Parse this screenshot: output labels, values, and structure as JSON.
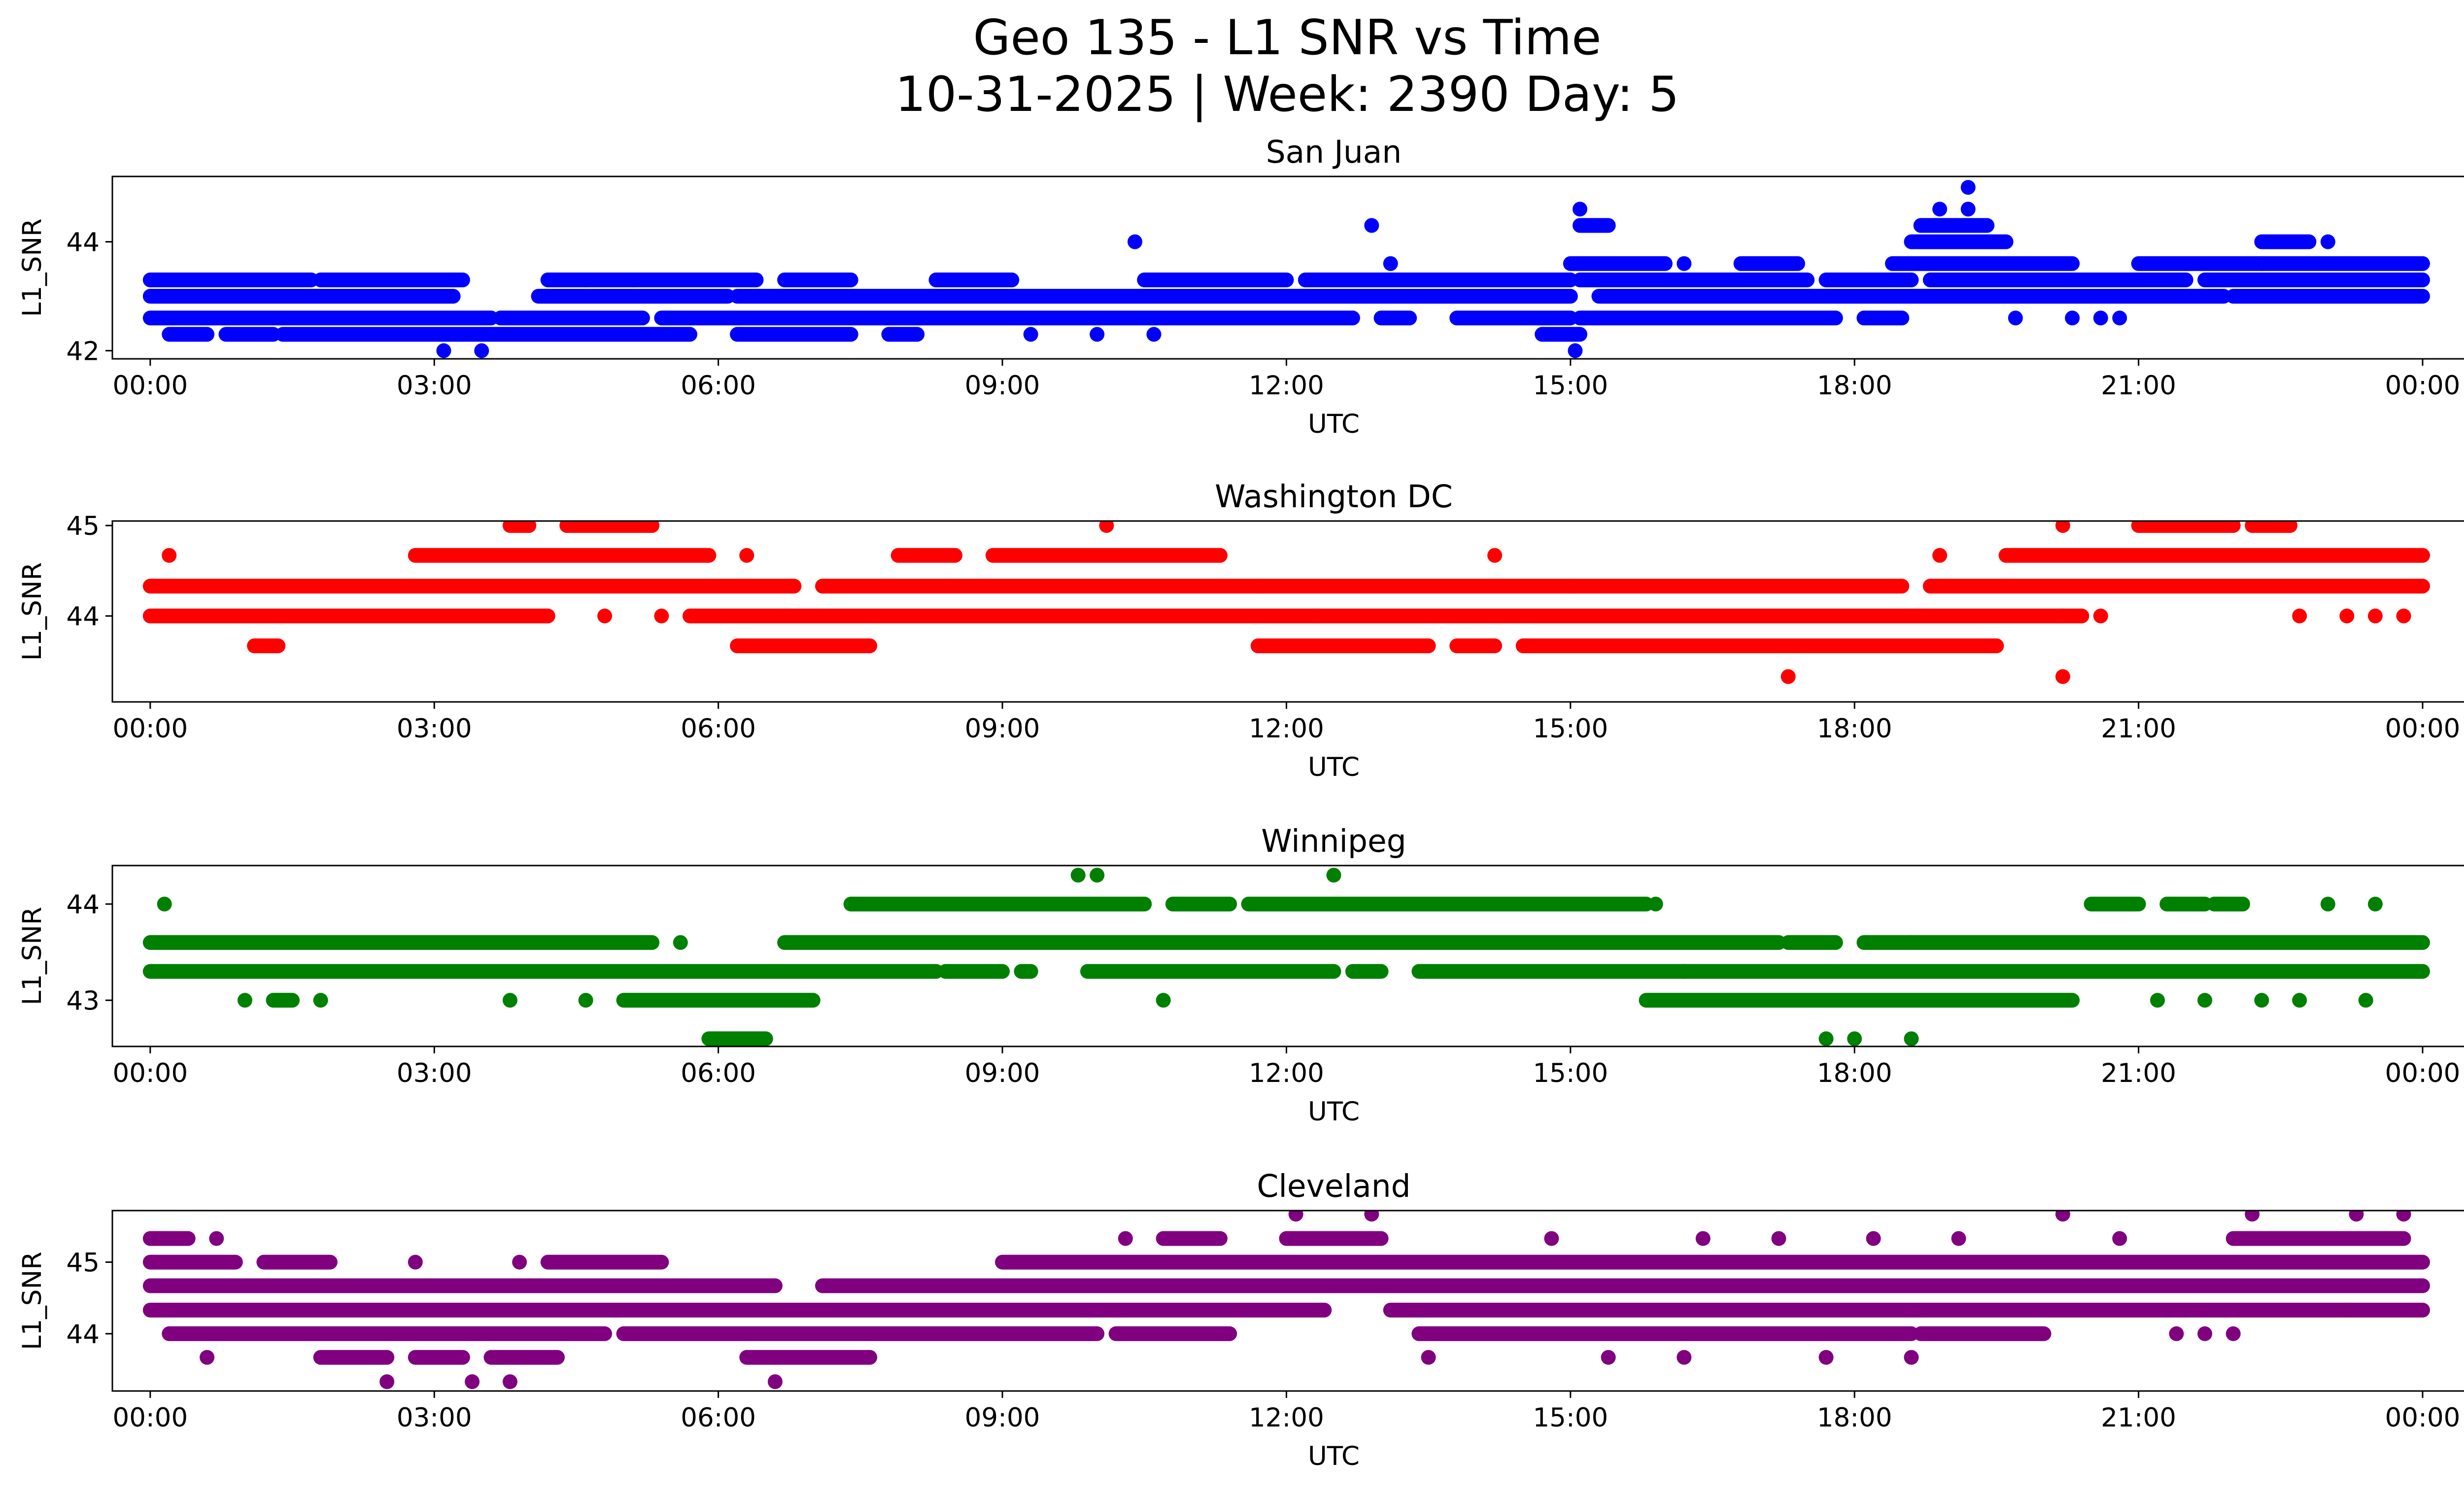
{
  "figure": {
    "title_line1": "Geo 135 - L1 SNR vs Time",
    "title_line2": "10-31-2025 | Week: 2390 Day: 5"
  },
  "chart_data": [
    {
      "type": "scatter",
      "title": "San Juan",
      "xlabel": "UTC",
      "ylabel": "L1_SNR",
      "color": "#0000ff",
      "xlim": [
        -0.4,
        25.4
      ],
      "ylim": [
        41.85,
        45.2
      ],
      "xticks": [
        0,
        3,
        6,
        9,
        12,
        15,
        18,
        21,
        24
      ],
      "xticklabels": [
        "00:00",
        "03:00",
        "06:00",
        "09:00",
        "12:00",
        "15:00",
        "18:00",
        "21:00",
        "00:00"
      ],
      "yticks": [
        42,
        44
      ],
      "yticklabels": [
        "42",
        "44"
      ],
      "bands": [
        {
          "y": 43.3,
          "ranges": [
            [
              0,
              1.7
            ],
            [
              1.8,
              3.3
            ],
            [
              4.2,
              6.4
            ],
            [
              6.7,
              7.4
            ],
            [
              8.3,
              9.1
            ],
            [
              10.5,
              12
            ],
            [
              12.2,
              15
            ],
            [
              15.1,
              17.5
            ],
            [
              17.7,
              18.6
            ],
            [
              18.8,
              21.5
            ],
            [
              21.7,
              24
            ]
          ]
        },
        {
          "y": 43.0,
          "ranges": [
            [
              0,
              3.0
            ],
            [
              3.0,
              3.2
            ],
            [
              4.1,
              6.1
            ],
            [
              6.2,
              12.6
            ],
            [
              12.6,
              15
            ],
            [
              15.3,
              21.9
            ],
            [
              22,
              24
            ]
          ]
        },
        {
          "y": 42.6,
          "ranges": [
            [
              0,
              3.6
            ],
            [
              3.7,
              5.2
            ],
            [
              5.4,
              12.7
            ],
            [
              13,
              13.3
            ],
            [
              13.8,
              15
            ],
            [
              15.1,
              17.8
            ],
            [
              18.1,
              18.5
            ]
          ]
        },
        {
          "y": 42.3,
          "ranges": [
            [
              0.2,
              0.6
            ],
            [
              0.8,
              1.3
            ],
            [
              1.4,
              5.7
            ],
            [
              6.2,
              7.4
            ],
            [
              7.8,
              8.1
            ],
            [
              14.7,
              15.1
            ]
          ]
        },
        {
          "y": 43.6,
          "ranges": [
            [
              15,
              16
            ],
            [
              16.8,
              17.4
            ],
            [
              18.4,
              20.3
            ],
            [
              21,
              22.3
            ],
            [
              22.3,
              24
            ]
          ]
        },
        {
          "y": 44.0,
          "ranges": [
            [
              18.6,
              19.6
            ],
            [
              22.3,
              22.8
            ]
          ]
        },
        {
          "y": 44.3,
          "ranges": [
            [
              15.1,
              15.4
            ],
            [
              18.7,
              19.4
            ]
          ]
        }
      ],
      "points": [
        {
          "x": 3.1,
          "y": 42.0
        },
        {
          "x": 3.5,
          "y": 42.0
        },
        {
          "x": 10.4,
          "y": 44.0
        },
        {
          "x": 12.9,
          "y": 44.3
        },
        {
          "x": 13.1,
          "y": 43.6
        },
        {
          "x": 15.05,
          "y": 42.0
        },
        {
          "x": 15.1,
          "y": 44.6
        },
        {
          "x": 19.2,
          "y": 45.0
        },
        {
          "x": 19.2,
          "y": 44.6
        },
        {
          "x": 18.9,
          "y": 44.6
        },
        {
          "x": 19.7,
          "y": 42.6
        },
        {
          "x": 20.3,
          "y": 42.6
        },
        {
          "x": 20.6,
          "y": 42.6
        },
        {
          "x": 20.8,
          "y": 42.6
        },
        {
          "x": 23,
          "y": 44.0
        },
        {
          "x": 9.3,
          "y": 42.3
        },
        {
          "x": 10.0,
          "y": 42.3
        },
        {
          "x": 10.6,
          "y": 42.3
        },
        {
          "x": 4.6,
          "y": 43.3
        },
        {
          "x": 5.1,
          "y": 43.3
        },
        {
          "x": 16.2,
          "y": 43.6
        }
      ]
    },
    {
      "type": "scatter",
      "title": "Washington DC",
      "xlabel": "UTC",
      "ylabel": "L1_SNR",
      "color": "#ff0000",
      "xlim": [
        -0.4,
        25.4
      ],
      "ylim": [
        43.05,
        45.05
      ],
      "xticks": [
        0,
        3,
        6,
        9,
        12,
        15,
        18,
        21,
        24
      ],
      "xticklabels": [
        "00:00",
        "03:00",
        "06:00",
        "09:00",
        "12:00",
        "15:00",
        "18:00",
        "21:00",
        "00:00"
      ],
      "yticks": [
        44,
        45
      ],
      "yticklabels": [
        "44",
        "45"
      ],
      "bands": [
        {
          "y": 44.33,
          "ranges": [
            [
              0,
              6.8
            ],
            [
              7.1,
              11.7
            ],
            [
              11.7,
              15
            ],
            [
              15,
              18.5
            ],
            [
              18.8,
              24
            ]
          ]
        },
        {
          "y": 44.0,
          "ranges": [
            [
              0,
              4.2
            ],
            [
              5.7,
              12.3
            ],
            [
              12.3,
              20.2
            ],
            [
              20.2,
              20.4
            ]
          ]
        },
        {
          "y": 44.67,
          "ranges": [
            [
              2.8,
              5.9
            ],
            [
              7.9,
              8.5
            ],
            [
              8.9,
              11.3
            ],
            [
              19.6,
              24
            ]
          ]
        },
        {
          "y": 45.0,
          "ranges": [
            [
              3.8,
              4.0
            ],
            [
              4.4,
              5.3
            ],
            [
              21,
              22.0
            ],
            [
              22.2,
              22.6
            ]
          ]
        },
        {
          "y": 43.67,
          "ranges": [
            [
              1.1,
              1.35
            ],
            [
              6.2,
              7.6
            ],
            [
              11.7,
              13.5
            ],
            [
              13.8,
              14.2
            ],
            [
              14.5,
              19.5
            ]
          ]
        }
      ],
      "points": [
        {
          "x": 0.2,
          "y": 44.67
        },
        {
          "x": 4.8,
          "y": 44.0
        },
        {
          "x": 5.4,
          "y": 44.0
        },
        {
          "x": 6.3,
          "y": 44.67
        },
        {
          "x": 10.1,
          "y": 45.0
        },
        {
          "x": 14.2,
          "y": 44.67
        },
        {
          "x": 17.3,
          "y": 43.33
        },
        {
          "x": 18.9,
          "y": 44.67
        },
        {
          "x": 20.2,
          "y": 43.33
        },
        {
          "x": 20.2,
          "y": 45.0
        },
        {
          "x": 20.6,
          "y": 44.0
        },
        {
          "x": 22.7,
          "y": 44.0
        },
        {
          "x": 23.2,
          "y": 44.0
        },
        {
          "x": 23.5,
          "y": 44.0
        },
        {
          "x": 23.8,
          "y": 44.0
        }
      ]
    },
    {
      "type": "scatter",
      "title": "Winnipeg",
      "xlabel": "UTC",
      "ylabel": "L1_SNR",
      "color": "#008000",
      "xlim": [
        -0.4,
        25.4
      ],
      "ylim": [
        42.52,
        44.4
      ],
      "xticks": [
        0,
        3,
        6,
        9,
        12,
        15,
        18,
        21,
        24
      ],
      "xticklabels": [
        "00:00",
        "03:00",
        "06:00",
        "09:00",
        "12:00",
        "15:00",
        "18:00",
        "21:00",
        "00:00"
      ],
      "yticks": [
        43,
        44
      ],
      "yticklabels": [
        "43",
        "44"
      ],
      "bands": [
        {
          "y": 43.6,
          "ranges": [
            [
              0,
              5.3
            ],
            [
              6.7,
              17.2
            ],
            [
              17.3,
              17.8
            ],
            [
              18.1,
              18.6
            ],
            [
              18.6,
              24
            ]
          ]
        },
        {
          "y": 43.3,
          "ranges": [
            [
              0,
              8.3
            ],
            [
              8.4,
              9.0
            ],
            [
              9.2,
              9.3
            ],
            [
              9.9,
              12.5
            ],
            [
              12.7,
              13.0
            ],
            [
              13.4,
              16.2
            ],
            [
              16.2,
              24
            ]
          ]
        },
        {
          "y": 43.0,
          "ranges": [
            [
              5.0,
              7.0
            ],
            [
              15.8,
              20.3
            ],
            [
              1.3,
              1.5
            ]
          ]
        },
        {
          "y": 42.6,
          "ranges": [
            [
              5.9,
              6.5
            ]
          ]
        },
        {
          "y": 44.0,
          "ranges": [
            [
              7.4,
              10.5
            ],
            [
              10.8,
              11.4
            ],
            [
              11.6,
              15.8
            ],
            [
              20.5,
              21
            ],
            [
              21.3,
              21.7
            ],
            [
              21.8,
              22.1
            ]
          ]
        }
      ],
      "points": [
        {
          "x": 0.15,
          "y": 44.0
        },
        {
          "x": 1.0,
          "y": 43.0
        },
        {
          "x": 1.8,
          "y": 43.0
        },
        {
          "x": 3.8,
          "y": 43.0
        },
        {
          "x": 4.6,
          "y": 43.0
        },
        {
          "x": 5.6,
          "y": 43.6
        },
        {
          "x": 9.8,
          "y": 44.3
        },
        {
          "x": 10.0,
          "y": 44.3
        },
        {
          "x": 12.5,
          "y": 44.3
        },
        {
          "x": 10.7,
          "y": 43.0
        },
        {
          "x": 17.7,
          "y": 42.6
        },
        {
          "x": 18.0,
          "y": 42.6
        },
        {
          "x": 18.6,
          "y": 42.6
        },
        {
          "x": 21.2,
          "y": 43.0
        },
        {
          "x": 21.7,
          "y": 43.0
        },
        {
          "x": 22.3,
          "y": 43.0
        },
        {
          "x": 23.0,
          "y": 44.0
        },
        {
          "x": 23.5,
          "y": 44.0
        },
        {
          "x": 22.7,
          "y": 43.0
        },
        {
          "x": 23.4,
          "y": 43.0
        },
        {
          "x": 15.9,
          "y": 44.0
        }
      ]
    },
    {
      "type": "scatter",
      "title": "Cleveland",
      "xlabel": "UTC",
      "ylabel": "L1_SNR",
      "color": "#800080",
      "xlim": [
        -0.4,
        25.4
      ],
      "ylim": [
        43.2,
        45.72
      ],
      "xticks": [
        0,
        3,
        6,
        9,
        12,
        15,
        18,
        21,
        24
      ],
      "xticklabels": [
        "00:00",
        "03:00",
        "06:00",
        "09:00",
        "12:00",
        "15:00",
        "18:00",
        "21:00",
        "00:00"
      ],
      "yticks": [
        44,
        45
      ],
      "yticklabels": [
        "44",
        "45"
      ],
      "bands": [
        {
          "y": 44.67,
          "ranges": [
            [
              0,
              6.6
            ],
            [
              7.1,
              24
            ]
          ]
        },
        {
          "y": 44.33,
          "ranges": [
            [
              0,
              12.4
            ],
            [
              13.1,
              24
            ]
          ]
        },
        {
          "y": 45.0,
          "ranges": [
            [
              0,
              0.9
            ],
            [
              1.2,
              1.9
            ],
            [
              4.2,
              5.4
            ],
            [
              9.0,
              24
            ]
          ]
        },
        {
          "y": 44.0,
          "ranges": [
            [
              0.2,
              4.8
            ],
            [
              5.0,
              10
            ],
            [
              10.2,
              11.4
            ],
            [
              13.4,
              18.6
            ],
            [
              18.7,
              20
            ]
          ]
        },
        {
          "y": 45.33,
          "ranges": [
            [
              0,
              0.4
            ],
            [
              10.7,
              11.3
            ],
            [
              12.0,
              13.0
            ],
            [
              22.0,
              23.8
            ]
          ]
        },
        {
          "y": 43.67,
          "ranges": [
            [
              1.8,
              2.5
            ],
            [
              2.8,
              3.3
            ],
            [
              3.6,
              4.3
            ],
            [
              6.3,
              7.6
            ]
          ]
        }
      ],
      "points": [
        {
          "x": 0.1,
          "y": 45.33
        },
        {
          "x": 0.7,
          "y": 45.33
        },
        {
          "x": 0.6,
          "y": 43.67
        },
        {
          "x": 2.5,
          "y": 43.33
        },
        {
          "x": 2.8,
          "y": 45.0
        },
        {
          "x": 3.4,
          "y": 43.33
        },
        {
          "x": 3.8,
          "y": 43.33
        },
        {
          "x": 3.9,
          "y": 45.0
        },
        {
          "x": 6.6,
          "y": 43.33
        },
        {
          "x": 10.3,
          "y": 45.33
        },
        {
          "x": 12.1,
          "y": 45.67
        },
        {
          "x": 12.9,
          "y": 45.67
        },
        {
          "x": 13.5,
          "y": 43.67
        },
        {
          "x": 15.4,
          "y": 43.67
        },
        {
          "x": 16.2,
          "y": 43.67
        },
        {
          "x": 17.7,
          "y": 43.67
        },
        {
          "x": 18.6,
          "y": 43.67
        },
        {
          "x": 20.2,
          "y": 45.67
        },
        {
          "x": 22.2,
          "y": 45.67
        },
        {
          "x": 23.3,
          "y": 45.67
        },
        {
          "x": 23.8,
          "y": 45.67
        },
        {
          "x": 14.8,
          "y": 45.33
        },
        {
          "x": 16.4,
          "y": 45.33
        },
        {
          "x": 17.2,
          "y": 45.33
        },
        {
          "x": 18.2,
          "y": 45.33
        },
        {
          "x": 19.1,
          "y": 45.33
        },
        {
          "x": 20.8,
          "y": 45.33
        },
        {
          "x": 21.4,
          "y": 44.0
        },
        {
          "x": 21.7,
          "y": 44.0
        },
        {
          "x": 22.0,
          "y": 44.0
        },
        {
          "x": 23.2,
          "y": 44.33
        }
      ]
    }
  ]
}
